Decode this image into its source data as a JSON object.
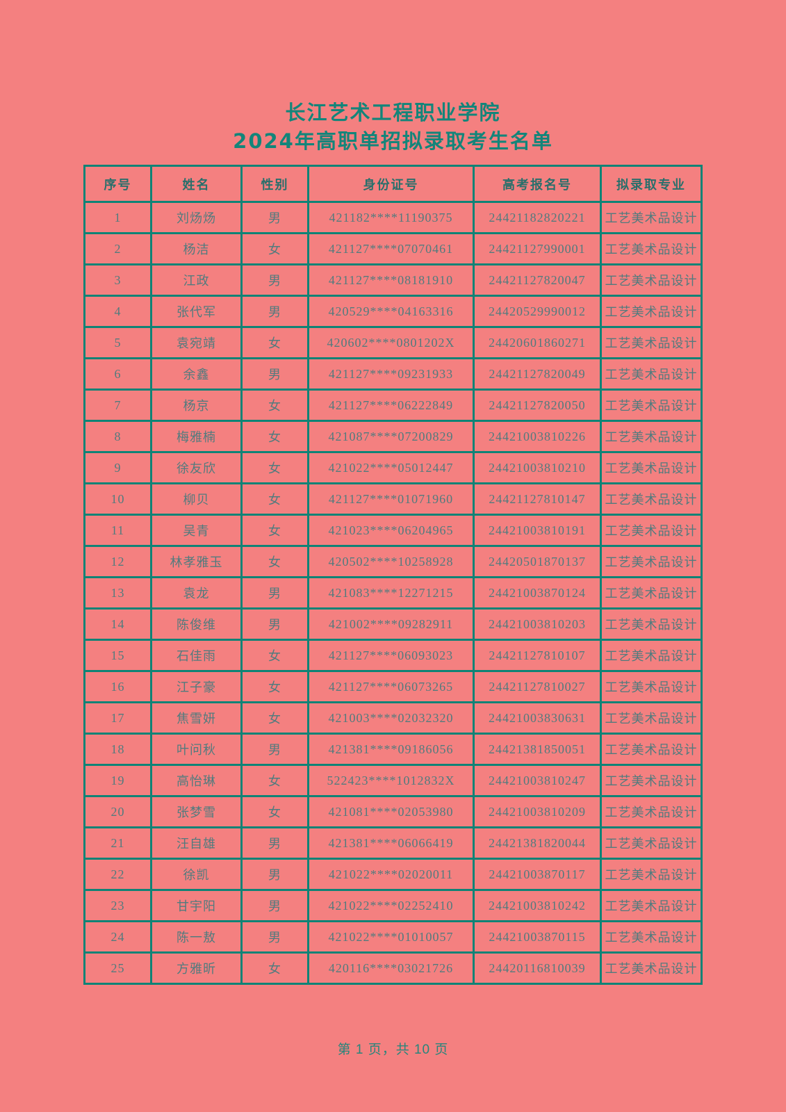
{
  "page": {
    "title_line1": "长江艺术工程职业学院",
    "title_line2": "2024年高职单招拟录取考生名单",
    "footer": "第 1 页，共 10 页"
  },
  "colors": {
    "background": "#f48080",
    "border_teal": "#0f8376",
    "title_text": "#13857a",
    "header_text": "#296f6b",
    "data_text": "#517b7e",
    "footer_text": "#27857b"
  },
  "table": {
    "headers": [
      "序号",
      "姓名",
      "性别",
      "身份证号",
      "高考报名号",
      "拟录取专业"
    ],
    "rows": [
      [
        "1",
        "刘炀炀",
        "男",
        "421182****11190375",
        "24421182820221",
        "工艺美术品设计"
      ],
      [
        "2",
        "杨洁",
        "女",
        "421127****07070461",
        "24421127990001",
        "工艺美术品设计"
      ],
      [
        "3",
        "江政",
        "男",
        "421127****08181910",
        "24421127820047",
        "工艺美术品设计"
      ],
      [
        "4",
        "张代军",
        "男",
        "420529****04163316",
        "24420529990012",
        "工艺美术品设计"
      ],
      [
        "5",
        "袁宛靖",
        "女",
        "420602****0801202X",
        "24420601860271",
        "工艺美术品设计"
      ],
      [
        "6",
        "余鑫",
        "男",
        "421127****09231933",
        "24421127820049",
        "工艺美术品设计"
      ],
      [
        "7",
        "杨京",
        "女",
        "421127****06222849",
        "24421127820050",
        "工艺美术品设计"
      ],
      [
        "8",
        "梅雅楠",
        "女",
        "421087****07200829",
        "24421003810226",
        "工艺美术品设计"
      ],
      [
        "9",
        "徐友欣",
        "女",
        "421022****05012447",
        "24421003810210",
        "工艺美术品设计"
      ],
      [
        "10",
        "柳贝",
        "女",
        "421127****01071960",
        "24421127810147",
        "工艺美术品设计"
      ],
      [
        "11",
        "吴青",
        "女",
        "421023****06204965",
        "24421003810191",
        "工艺美术品设计"
      ],
      [
        "12",
        "林孝雅玉",
        "女",
        "420502****10258928",
        "24420501870137",
        "工艺美术品设计"
      ],
      [
        "13",
        "袁龙",
        "男",
        "421083****12271215",
        "24421003870124",
        "工艺美术品设计"
      ],
      [
        "14",
        "陈俊维",
        "男",
        "421002****09282911",
        "24421003810203",
        "工艺美术品设计"
      ],
      [
        "15",
        "石佳雨",
        "女",
        "421127****06093023",
        "24421127810107",
        "工艺美术品设计"
      ],
      [
        "16",
        "江子豪",
        "女",
        "421127****06073265",
        "24421127810027",
        "工艺美术品设计"
      ],
      [
        "17",
        "焦雪妍",
        "女",
        "421003****02032320",
        "24421003830631",
        "工艺美术品设计"
      ],
      [
        "18",
        "叶问秋",
        "男",
        "421381****09186056",
        "24421381850051",
        "工艺美术品设计"
      ],
      [
        "19",
        "高怡琳",
        "女",
        "522423****1012832X",
        "24421003810247",
        "工艺美术品设计"
      ],
      [
        "20",
        "张梦雪",
        "女",
        "421081****02053980",
        "24421003810209",
        "工艺美术品设计"
      ],
      [
        "21",
        "汪自雄",
        "男",
        "421381****06066419",
        "24421381820044",
        "工艺美术品设计"
      ],
      [
        "22",
        "徐凯",
        "男",
        "421022****02020011",
        "24421003870117",
        "工艺美术品设计"
      ],
      [
        "23",
        "甘宇阳",
        "男",
        "421022****02252410",
        "24421003810242",
        "工艺美术品设计"
      ],
      [
        "24",
        "陈一敖",
        "男",
        "421022****01010057",
        "24421003870115",
        "工艺美术品设计"
      ],
      [
        "25",
        "方雅昕",
        "女",
        "420116****03021726",
        "24420116810039",
        "工艺美术品设计"
      ]
    ]
  }
}
